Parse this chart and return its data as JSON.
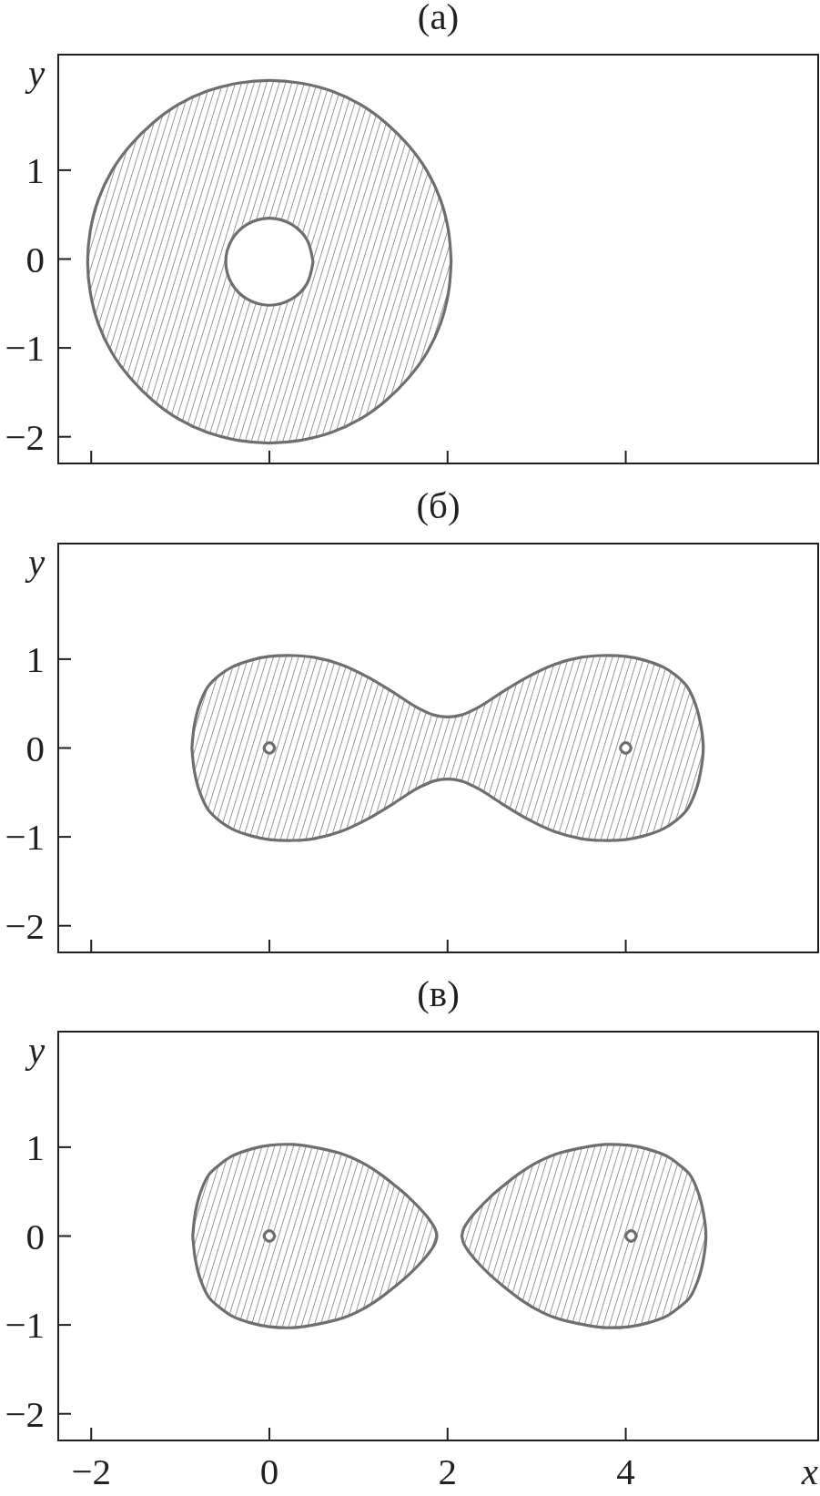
{
  "chart_data": [
    {
      "type": "area",
      "title": "(а)",
      "ylabel": "y",
      "xlim": [
        -2.37,
        6.16
      ],
      "ylim": [
        -2.3,
        2.3
      ],
      "xticks": [
        -2,
        0,
        2,
        4
      ],
      "yticks": [
        -2,
        -1,
        0,
        1
      ],
      "tick_labels": "y",
      "series": [
        {
          "color": "#6e6e6e",
          "x": [
            2.04,
            2.01,
            1.92,
            1.77,
            1.56,
            1.31,
            1.02,
            0.7,
            0.35,
            0,
            -0.35,
            -0.7,
            -1.02,
            -1.31,
            -1.56,
            -1.77,
            -1.92,
            -2.01,
            -2.04,
            -2.01,
            -1.92,
            -1.77,
            -1.56,
            -1.31,
            -1.02,
            -0.7,
            -0.35,
            0,
            0.35,
            0.7,
            1.02,
            1.31,
            1.56,
            1.77,
            1.92,
            2.01,
            2.04,
            null,
            0.49,
            0.42,
            0.25,
            0,
            -0.25,
            -0.42,
            -0.49,
            -0.42,
            -0.25,
            0,
            0.25,
            0.42,
            0.49
          ],
          "values": [
            -0.03,
            0.32,
            0.67,
            0.99,
            1.28,
            1.53,
            1.74,
            1.89,
            1.98,
            2.01,
            1.98,
            1.89,
            1.74,
            1.53,
            1.28,
            0.99,
            0.67,
            0.32,
            -0.03,
            -0.38,
            -0.73,
            -1.05,
            -1.34,
            -1.59,
            -1.8,
            -1.95,
            -2.04,
            -2.07,
            -2.04,
            -1.95,
            -1.8,
            -1.59,
            -1.34,
            -1.05,
            -0.73,
            -0.38,
            -0.03,
            null,
            -0.03,
            0.22,
            0.39,
            0.46,
            0.39,
            0.22,
            -0.03,
            -0.28,
            -0.45,
            -0.52,
            -0.45,
            -0.28,
            -0.03
          ]
        }
      ]
    },
    {
      "type": "area",
      "title": "(б)",
      "ylabel": "y",
      "xlim": [
        -2.37,
        6.16
      ],
      "ylim": [
        -2.3,
        2.3
      ],
      "xticks": [
        -2,
        0,
        2,
        4
      ],
      "yticks": [
        -2,
        -1,
        0,
        1
      ],
      "tick_labels": "y",
      "series": [
        {
          "color": "#6e6e6e",
          "x": [
            -0.87,
            -0.84,
            -0.78,
            -0.69,
            -0.56,
            -0.42,
            -0.2,
            0,
            0.28,
            0.5,
            0.8,
            1.1,
            1.4,
            1.65,
            1.85,
            2.0,
            2.15,
            2.35,
            2.6,
            2.9,
            3.2,
            3.5,
            3.72,
            4.0,
            4.2,
            4.42,
            4.56,
            4.69,
            4.78,
            4.84,
            4.87,
            4.84,
            4.78,
            4.69,
            4.56,
            4.42,
            4.2,
            4.0,
            3.72,
            3.5,
            3.2,
            2.9,
            2.6,
            2.35,
            2.15,
            2.0,
            1.85,
            1.65,
            1.4,
            1.1,
            0.8,
            0.5,
            0.28,
            0,
            -0.2,
            -0.42,
            -0.56,
            -0.69,
            -0.78,
            -0.84,
            -0.87,
            null,
            0.06,
            0.04,
            0,
            -0.04,
            -0.06,
            -0.04,
            0,
            0.04,
            0.06,
            null,
            4.06,
            4.04,
            4,
            3.96,
            3.94,
            3.96,
            4,
            4.04,
            4.06
          ],
          "values": [
            0,
            0.27,
            0.5,
            0.69,
            0.82,
            0.91,
            0.99,
            1.03,
            1.04,
            1.02,
            0.94,
            0.8,
            0.62,
            0.46,
            0.37,
            0.35,
            0.37,
            0.46,
            0.62,
            0.8,
            0.94,
            1.02,
            1.04,
            1.03,
            0.99,
            0.91,
            0.82,
            0.69,
            0.5,
            0.27,
            0,
            -0.27,
            -0.5,
            -0.69,
            -0.82,
            -0.91,
            -0.99,
            -1.03,
            -1.04,
            -1.02,
            -0.94,
            -0.8,
            -0.62,
            -0.46,
            -0.37,
            -0.35,
            -0.37,
            -0.46,
            -0.62,
            -0.8,
            -0.94,
            -1.02,
            -1.04,
            -1.03,
            -0.99,
            -0.91,
            -0.82,
            -0.69,
            -0.5,
            -0.27,
            0,
            null,
            0,
            0.04,
            0.06,
            0.04,
            0,
            -0.04,
            -0.06,
            -0.04,
            0,
            null,
            0,
            0.04,
            0.06,
            0.04,
            0,
            -0.04,
            -0.06,
            -0.04,
            0
          ]
        }
      ]
    },
    {
      "type": "area",
      "title": "(в)",
      "xlabel": "x",
      "ylabel": "y",
      "xlim": [
        -2.37,
        6.16
      ],
      "ylim": [
        -2.3,
        2.3
      ],
      "xticks": [
        -2,
        0,
        2,
        4
      ],
      "yticks": [
        -2,
        -1,
        0,
        1
      ],
      "series": [
        {
          "color": "#6e6e6e",
          "x": [
            -0.86,
            -0.83,
            -0.77,
            -0.68,
            -0.55,
            -0.42,
            -0.2,
            0,
            0.27,
            0.55,
            0.83,
            1.05,
            1.24,
            1.42,
            1.56,
            1.68,
            1.76,
            1.82,
            1.86,
            1.88,
            1.86,
            1.82,
            1.76,
            1.68,
            1.56,
            1.42,
            1.24,
            1.05,
            0.83,
            0.55,
            0.27,
            0,
            -0.2,
            -0.42,
            -0.55,
            -0.68,
            -0.77,
            -0.83,
            -0.86,
            null,
            2.16,
            2.18,
            2.22,
            2.28,
            2.36,
            2.48,
            2.62,
            2.8,
            2.99,
            3.21,
            3.49,
            3.77,
            4.04,
            4.24,
            4.46,
            4.59,
            4.72,
            4.81,
            4.87,
            4.9,
            4.87,
            4.81,
            4.72,
            4.59,
            4.46,
            4.24,
            4.04,
            3.77,
            3.49,
            3.21,
            2.99,
            2.8,
            2.62,
            2.48,
            2.36,
            2.28,
            2.22,
            2.18,
            2.16,
            null,
            0.06,
            0.04,
            0,
            -0.04,
            -0.06,
            -0.04,
            0,
            0.04,
            0.06,
            null,
            4.12,
            4.1,
            4.06,
            4.02,
            4.0,
            4.02,
            4.06,
            4.1,
            4.12
          ],
          "values": [
            0,
            0.27,
            0.5,
            0.69,
            0.81,
            0.9,
            0.98,
            1.02,
            1.03,
            0.99,
            0.92,
            0.82,
            0.7,
            0.56,
            0.44,
            0.32,
            0.23,
            0.15,
            0.08,
            0,
            -0.08,
            -0.15,
            -0.23,
            -0.32,
            -0.44,
            -0.56,
            -0.7,
            -0.82,
            -0.92,
            -0.99,
            -1.03,
            -1.02,
            -0.98,
            -0.9,
            -0.81,
            -0.69,
            -0.5,
            -0.27,
            0,
            null,
            0,
            0.08,
            0.15,
            0.23,
            0.32,
            0.44,
            0.56,
            0.7,
            0.82,
            0.92,
            0.99,
            1.03,
            1.02,
            0.98,
            0.9,
            0.81,
            0.69,
            0.5,
            0.27,
            0,
            -0.27,
            -0.5,
            -0.69,
            -0.81,
            -0.9,
            -0.98,
            -1.02,
            -1.03,
            -0.99,
            -0.92,
            -0.82,
            -0.7,
            -0.56,
            -0.44,
            -0.32,
            -0.23,
            -0.15,
            -0.08,
            0,
            null,
            0,
            0.04,
            0.06,
            0.04,
            0,
            -0.04,
            -0.06,
            -0.04,
            0,
            null,
            0,
            0.04,
            0.06,
            0.04,
            0,
            -0.04,
            -0.06,
            -0.04,
            0
          ]
        }
      ]
    }
  ]
}
